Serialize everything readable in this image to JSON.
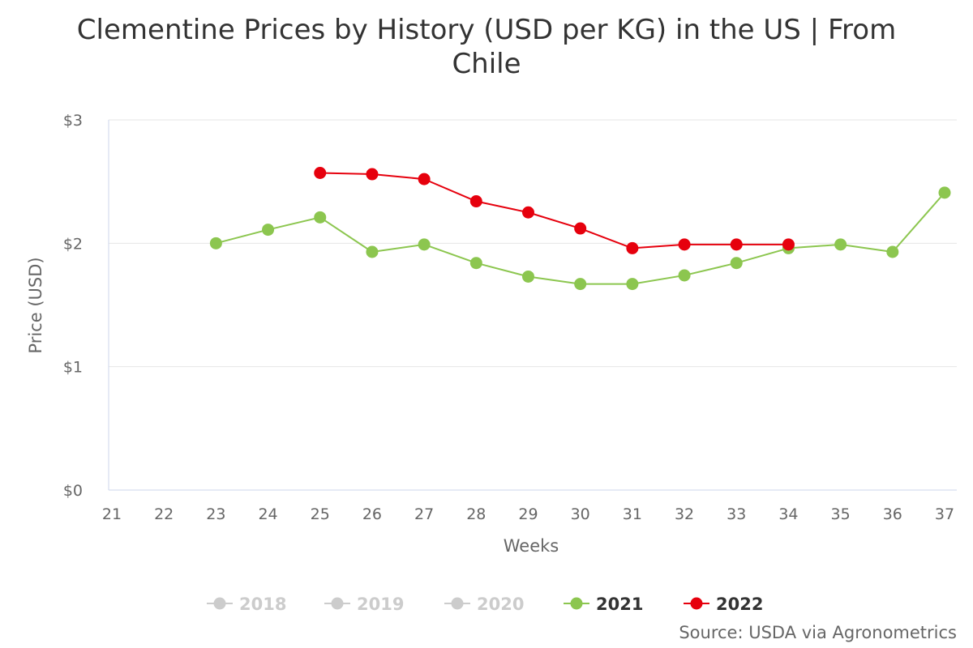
{
  "chart_data": {
    "type": "line",
    "title_lines": [
      "Clementine Prices by History (USD per KG) in the US | From",
      "Chile"
    ],
    "xlabel": "Weeks",
    "ylabel": "Price (USD)",
    "x_categories": [
      "21",
      "22",
      "23",
      "24",
      "25",
      "26",
      "27",
      "28",
      "29",
      "30",
      "31",
      "32",
      "33",
      "34",
      "35",
      "36",
      "37"
    ],
    "y_ticks": [
      {
        "value": 0,
        "label": "$0"
      },
      {
        "value": 1,
        "label": "$1"
      },
      {
        "value": 2,
        "label": "$2"
      },
      {
        "value": 3,
        "label": "$3"
      }
    ],
    "ylim": [
      0,
      3
    ],
    "grid": true,
    "legend_position": "bottom-center",
    "series": [
      {
        "name": "2018",
        "visible": false,
        "color": "#cccccc",
        "points": []
      },
      {
        "name": "2019",
        "visible": false,
        "color": "#cccccc",
        "points": []
      },
      {
        "name": "2020",
        "visible": false,
        "color": "#cccccc",
        "points": []
      },
      {
        "name": "2021",
        "visible": true,
        "color": "#8cc64f",
        "points": [
          {
            "x": 23,
            "y": 2.0
          },
          {
            "x": 24,
            "y": 2.11
          },
          {
            "x": 25,
            "y": 2.21
          },
          {
            "x": 26,
            "y": 1.93
          },
          {
            "x": 27,
            "y": 1.99
          },
          {
            "x": 28,
            "y": 1.84
          },
          {
            "x": 29,
            "y": 1.73
          },
          {
            "x": 30,
            "y": 1.67
          },
          {
            "x": 31,
            "y": 1.67
          },
          {
            "x": 32,
            "y": 1.74
          },
          {
            "x": 33,
            "y": 1.84
          },
          {
            "x": 34,
            "y": 1.96
          },
          {
            "x": 35,
            "y": 1.99
          },
          {
            "x": 36,
            "y": 1.93
          },
          {
            "x": 37,
            "y": 2.41
          }
        ]
      },
      {
        "name": "2022",
        "visible": true,
        "color": "#e6000d",
        "points": [
          {
            "x": 25,
            "y": 2.57
          },
          {
            "x": 26,
            "y": 2.56
          },
          {
            "x": 27,
            "y": 2.52
          },
          {
            "x": 28,
            "y": 2.34
          },
          {
            "x": 29,
            "y": 2.25
          },
          {
            "x": 30,
            "y": 2.12
          },
          {
            "x": 31,
            "y": 1.96
          },
          {
            "x": 32,
            "y": 1.99
          },
          {
            "x": 33,
            "y": 1.99
          },
          {
            "x": 34,
            "y": 1.99
          }
        ]
      }
    ],
    "source": "Source: USDA via Agronometrics",
    "colors": {
      "grid": "#e6e6e6",
      "axis": "#ccd6eb",
      "hidden_legend": "#cccccc",
      "active_legend_text": "#333333"
    }
  }
}
